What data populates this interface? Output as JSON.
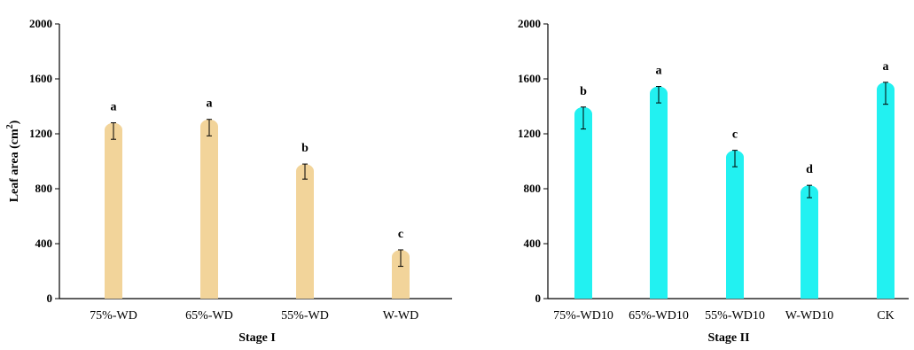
{
  "chart_data": [
    {
      "type": "bar",
      "xlabel": "Stage I",
      "ylabel": "Leaf area (cm",
      "ylabel_sup": "2",
      "ylabel_end": ")",
      "ylim": [
        0,
        2000
      ],
      "yticks": [
        0,
        400,
        800,
        1200,
        1600,
        2000
      ],
      "grid": false,
      "bar_color": "#f2d49a",
      "categories": [
        "75%-WD",
        "65%-WD",
        "55%-WD",
        "W-WD"
      ],
      "values": [
        1280,
        1305,
        980,
        355
      ],
      "errors": [
        60,
        60,
        55,
        60
      ],
      "labels": [
        "a",
        "a",
        "b",
        "c"
      ]
    },
    {
      "type": "bar",
      "xlabel": "Stage II",
      "ylabel": "",
      "ylim": [
        0,
        2000
      ],
      "yticks": [
        0,
        400,
        800,
        1200,
        1600,
        2000
      ],
      "grid": false,
      "bar_color": "#22f1f1",
      "categories": [
        "75%-WD10",
        "65%-WD10",
        "55%-WD10",
        "W-WD10",
        "CK"
      ],
      "values": [
        1395,
        1545,
        1080,
        825,
        1575
      ],
      "errors": [
        80,
        60,
        60,
        45,
        80
      ],
      "labels": [
        "b",
        "a",
        "c",
        "d",
        "a"
      ]
    }
  ]
}
